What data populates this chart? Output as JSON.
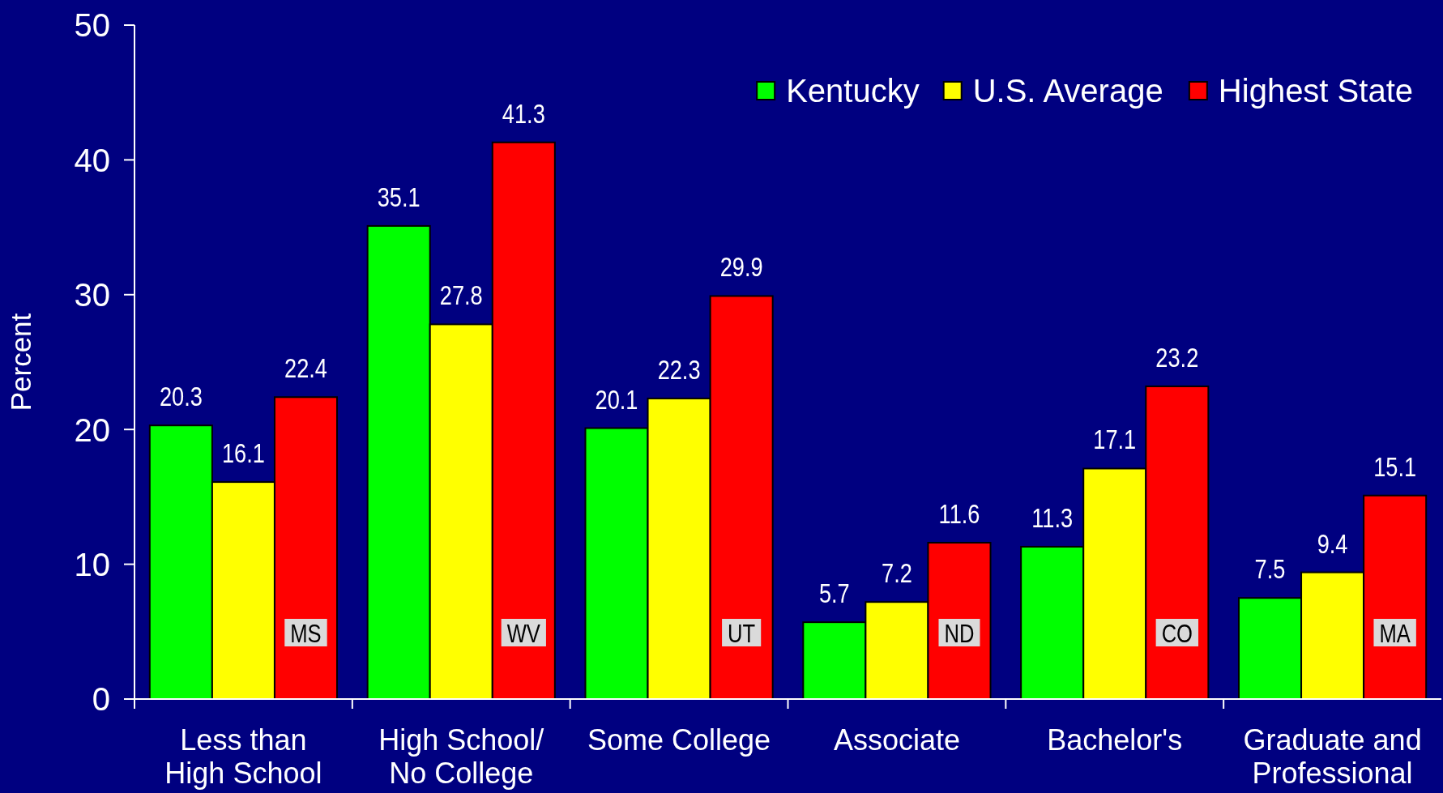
{
  "chart_data": {
    "type": "bar",
    "ylabel": "Percent",
    "categories": [
      "Less than High School",
      "High School/ No College",
      "Some College",
      "Associate",
      "Bachelor's",
      "Graduate and Professional"
    ],
    "series": [
      {
        "name": "Kentucky",
        "color": "#00ff00",
        "values": [
          20.3,
          35.1,
          20.1,
          5.7,
          11.3,
          7.5
        ]
      },
      {
        "name": "U.S. Average",
        "color": "#ffff00",
        "values": [
          16.1,
          27.8,
          22.3,
          7.2,
          17.1,
          9.4
        ]
      },
      {
        "name": "Highest State",
        "color": "#ff0000",
        "values": [
          22.4,
          41.3,
          29.9,
          11.6,
          23.2,
          15.1
        ]
      }
    ],
    "ylim": [
      0,
      50
    ],
    "yticks": [
      0,
      10,
      20,
      30,
      40,
      50
    ],
    "legend": "top right",
    "data_labels": true,
    "annotations": [
      "MS",
      "WV",
      "UT",
      "ND",
      "CO",
      "MA"
    ]
  }
}
